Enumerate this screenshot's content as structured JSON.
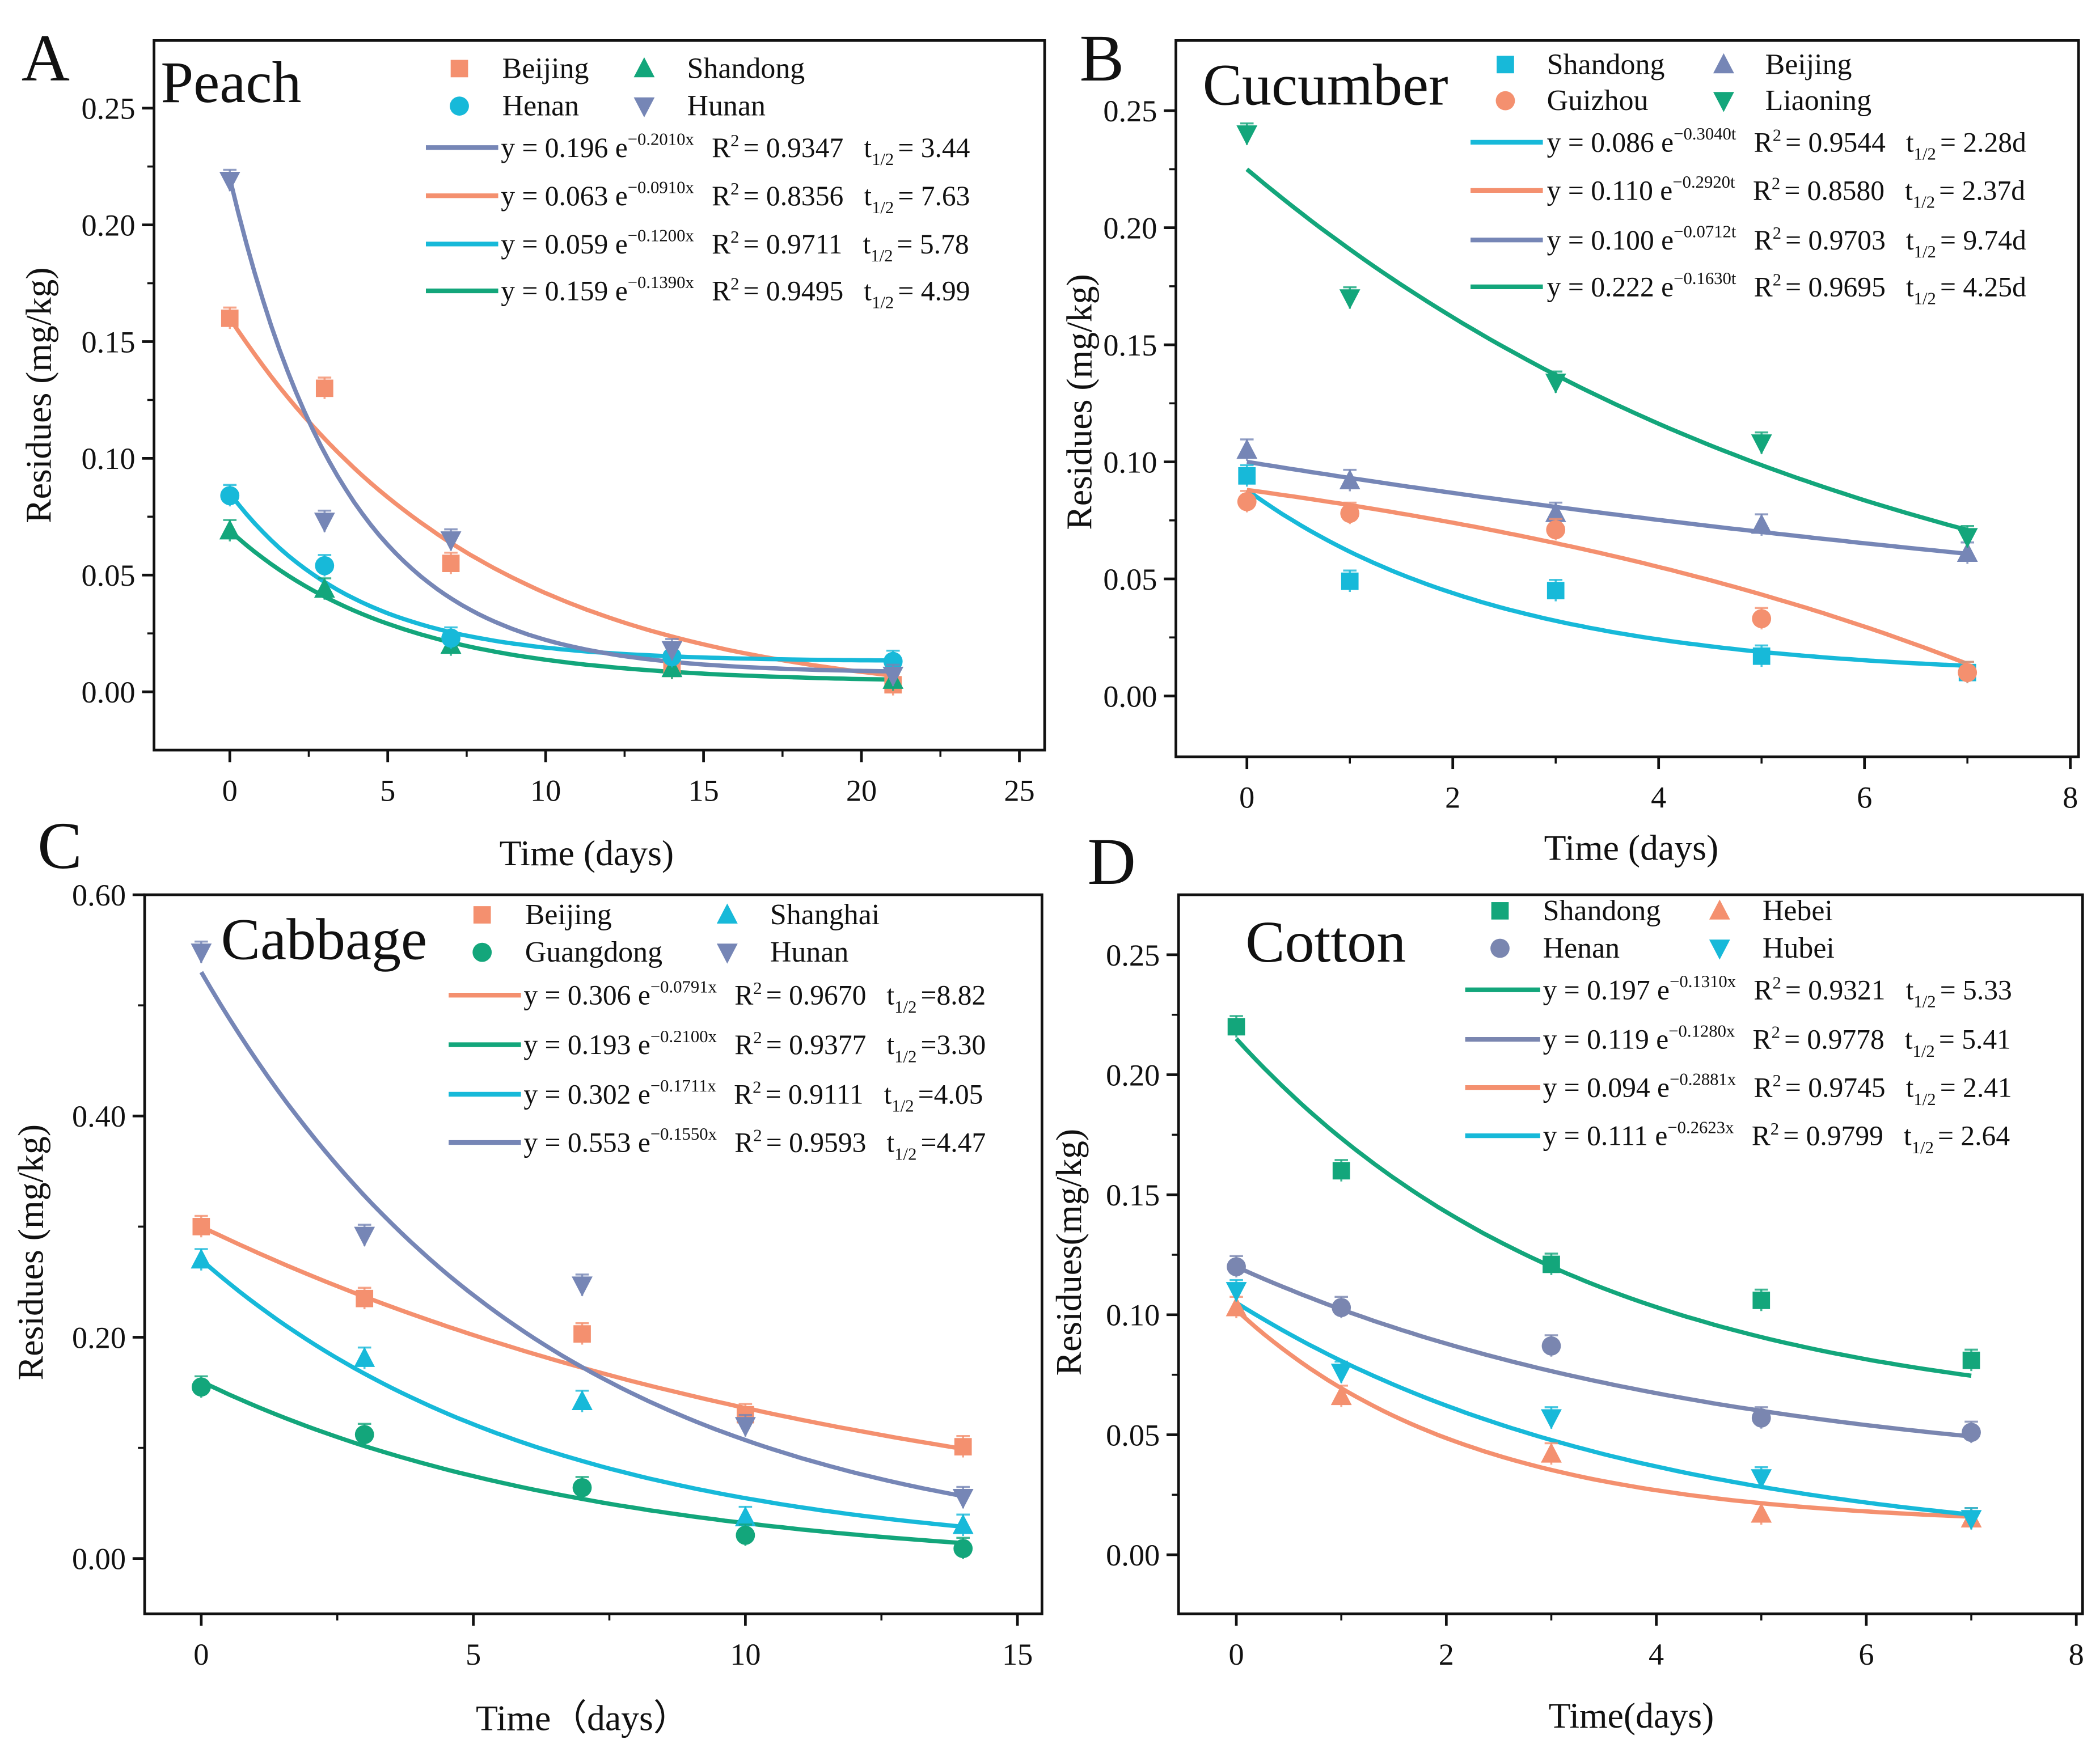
{
  "chart_data": [
    {
      "type": "scatter",
      "panel_letter": "A",
      "title": "Peach",
      "xlabel": "Time (days)",
      "ylabel": "Residues (mg/kg)",
      "xlim": [
        -2.4,
        25.8
      ],
      "ylim": [
        -0.025,
        0.279
      ],
      "xticks": [
        "0",
        "5",
        "10",
        "15",
        "20",
        "25"
      ],
      "yticks": [
        "0.00",
        "0.05",
        "0.10",
        "0.15",
        "0.20",
        "0.25"
      ],
      "x": [
        0,
        3,
        7,
        14,
        21
      ],
      "series": [
        {
          "name": "Beijing",
          "marker": "square",
          "color": "#f4906f",
          "values": [
            0.16,
            0.13,
            0.055,
            0.01,
            0.003
          ],
          "curve": {
            "a": 0.165,
            "k": 0.125,
            "c": -0.005
          }
        },
        {
          "name": "Shandong",
          "marker": "triangle-up",
          "color": "#13a67b",
          "values": [
            0.069,
            0.044,
            0.02,
            0.01,
            0.005
          ],
          "curve": {
            "a": 0.065,
            "k": 0.19,
            "c": 0.004
          }
        },
        {
          "name": "Henan",
          "marker": "circle",
          "color": "#17b9d9",
          "values": [
            0.084,
            0.054,
            0.023,
            0.015,
            0.013
          ],
          "curve": {
            "a": 0.072,
            "k": 0.25,
            "c": 0.013
          }
        },
        {
          "name": "Hunan",
          "marker": "triangle-down",
          "color": "#7686b6",
          "values": [
            0.219,
            0.073,
            0.065,
            0.018,
            0.007
          ],
          "curve": {
            "a": 0.212,
            "k": 0.27,
            "c": 0.008
          }
        }
      ],
      "fits": [
        {
          "color": "#7686b6",
          "equation": "y = 0.196 e",
          "exponent": "−0.2010x",
          "r2": "= 0.9347",
          "half_life": "= 3.44"
        },
        {
          "color": "#f4906f",
          "equation": "y = 0.063 e",
          "exponent": "−0.0910x",
          "r2": "= 0.8356",
          "half_life": "= 7.63"
        },
        {
          "color": "#17b9d9",
          "equation": "y = 0.059 e",
          "exponent": "−0.1200x",
          "r2": "= 0.9711",
          "half_life": "= 5.78"
        },
        {
          "color": "#13a67b",
          "equation": "y = 0.159 e",
          "exponent": "−0.1390x",
          "r2": "= 0.9495",
          "half_life": "= 4.99"
        }
      ]
    },
    {
      "type": "scatter",
      "panel_letter": "B",
      "title": "Cucumber",
      "xlabel": "Time (days)",
      "ylabel": "Residues (mg/kg)",
      "xlim": [
        -0.69,
        8.08
      ],
      "ylim": [
        -0.026,
        0.28
      ],
      "xticks": [
        "0",
        "2",
        "4",
        "6",
        "8"
      ],
      "yticks": [
        "0.00",
        "0.05",
        "0.10",
        "0.15",
        "0.20",
        "0.25"
      ],
      "x": [
        0,
        1,
        3,
        5,
        7
      ],
      "series": [
        {
          "name": "Shandong",
          "marker": "square",
          "color": "#17b9d9",
          "values": [
            0.094,
            0.049,
            0.045,
            0.017,
            0.01
          ],
          "curve": {
            "a": 0.08,
            "k": 0.4,
            "c": 0.008
          }
        },
        {
          "name": "Beijing",
          "marker": "triangle-up",
          "color": "#7686b6",
          "values": [
            0.105,
            0.092,
            0.078,
            0.073,
            0.061
          ],
          "curve": {
            "a": 0.1,
            "k": 0.0712,
            "c": 0
          }
        },
        {
          "name": "Guizhou",
          "marker": "circle",
          "color": "#f4906f",
          "values": [
            0.083,
            0.078,
            0.071,
            0.033,
            0.01
          ],
          "curve": {
            "a": -0.04,
            "k": -0.15,
            "c": 0.128
          }
        },
        {
          "name": "Liaoning",
          "marker": "triangle-down",
          "color": "#13a67b",
          "values": [
            0.24,
            0.17,
            0.134,
            0.108,
            0.068
          ],
          "curve": {
            "a": 0.225,
            "k": 0.165,
            "c": 0
          }
        }
      ],
      "fits": [
        {
          "color": "#17b9d9",
          "equation": "y = 0.086 e",
          "exponent": "−0.3040t",
          "r2": "= 0.9544",
          "half_life": "= 2.28d"
        },
        {
          "color": "#f4906f",
          "equation": "y = 0.110 e",
          "exponent": "−0.2920t",
          "r2": "= 0.8580",
          "half_life": "= 2.37d"
        },
        {
          "color": "#7686b6",
          "equation": "y = 0.100 e",
          "exponent": "−0.0712t",
          "r2": "= 0.9703",
          "half_life": "= 9.74d"
        },
        {
          "color": "#13a67b",
          "equation": "y = 0.222 e",
          "exponent": "−0.1630t",
          "r2": "= 0.9695",
          "half_life": "= 4.25d"
        }
      ]
    },
    {
      "type": "scatter",
      "panel_letter": "C",
      "title": "Cabbage",
      "xlabel": "Time（days）",
      "ylabel": "Residues (mg/kg)",
      "xlim": [
        -1.04,
        15.45
      ],
      "ylim": [
        -0.05,
        0.6
      ],
      "xticks": [
        "0",
        "5",
        "10",
        "15"
      ],
      "yticks": [
        "0.00",
        "0.20",
        "0.40",
        "0.60"
      ],
      "x": [
        0,
        3,
        7,
        10,
        14
      ],
      "series": [
        {
          "name": "Beijing",
          "marker": "square",
          "color": "#f4906f",
          "values": [
            0.3,
            0.235,
            0.203,
            0.13,
            0.101
          ],
          "curve": {
            "a": 0.3,
            "k": 0.0791,
            "c": 0
          }
        },
        {
          "name": "Shanghai",
          "marker": "triangle-up",
          "color": "#17b9d9",
          "values": [
            0.27,
            0.181,
            0.142,
            0.037,
            0.03
          ],
          "curve": {
            "a": 0.27,
            "k": 0.16,
            "c": 0
          }
        },
        {
          "name": "Guangdong",
          "marker": "circle",
          "color": "#13a67b",
          "values": [
            0.155,
            0.112,
            0.064,
            0.021,
            0.009
          ],
          "curve": {
            "a": 0.17,
            "k": 0.14,
            "c": -0.01
          }
        },
        {
          "name": "Hunan",
          "marker": "triangle-down",
          "color": "#7686b6",
          "values": [
            0.548,
            0.292,
            0.247,
            0.12,
            0.055
          ],
          "curve": {
            "a": 0.53,
            "k": 0.16,
            "c": 0
          }
        }
      ],
      "fits": [
        {
          "color": "#f4906f",
          "equation": "y = 0.306 e",
          "exponent": "−0.0791x",
          "r2": "= 0.9670",
          "half_life": "=8.82"
        },
        {
          "color": "#13a67b",
          "equation": "y = 0.193 e",
          "exponent": "−0.2100x",
          "r2": "= 0.9377",
          "half_life": "=3.30"
        },
        {
          "color": "#17b9d9",
          "equation": "y = 0.302 e",
          "exponent": "−0.1711x",
          "r2": "= 0.9111",
          "half_life": "=4.05"
        },
        {
          "color": "#7686b6",
          "equation": "y = 0.553 e",
          "exponent": "−0.1550x",
          "r2": "= 0.9593",
          "half_life": "=4.47"
        }
      ]
    },
    {
      "type": "scatter",
      "panel_letter": "D",
      "title": "Cotton",
      "xlabel": "Time(days)",
      "ylabel": "Residues(mg/kg)",
      "xlim": [
        -0.55,
        8.06
      ],
      "ylim": [
        -0.0246,
        0.275
      ],
      "xticks": [
        "0",
        "2",
        "4",
        "6",
        "8"
      ],
      "yticks": [
        "0.00",
        "0.05",
        "0.10",
        "0.15",
        "0.20",
        "0.25"
      ],
      "x": [
        0,
        1,
        3,
        5,
        7
      ],
      "series": [
        {
          "name": "Shandong",
          "marker": "square",
          "color": "#13a67b",
          "values": [
            0.22,
            0.16,
            0.121,
            0.106,
            0.081
          ],
          "curve": {
            "a": 0.16,
            "k": 0.3,
            "c": 0.055
          }
        },
        {
          "name": "Hebei",
          "marker": "triangle-up",
          "color": "#f4906f",
          "values": [
            0.103,
            0.066,
            0.042,
            0.017,
            0.015
          ],
          "curve": {
            "a": 0.09,
            "k": 0.45,
            "c": 0.012
          }
        },
        {
          "name": "Henan",
          "marker": "circle",
          "color": "#7a86b0",
          "values": [
            0.12,
            0.103,
            0.087,
            0.057,
            0.051
          ],
          "curve": {
            "a": 0.09,
            "k": 0.22,
            "c": 0.03
          }
        },
        {
          "name": "Hubei",
          "marker": "triangle-down",
          "color": "#17b9d9",
          "values": [
            0.11,
            0.076,
            0.057,
            0.032,
            0.015
          ],
          "curve": {
            "a": 0.105,
            "k": 0.2623,
            "c": 0
          }
        }
      ],
      "fits": [
        {
          "color": "#13a67b",
          "equation": "y = 0.197 e",
          "exponent": "−0.1310x",
          "r2": "= 0.9321",
          "half_life": "= 5.33"
        },
        {
          "color": "#7a86b0",
          "equation": "y = 0.119 e",
          "exponent": "−0.1280x",
          "r2": "= 0.9778",
          "half_life": "= 5.41"
        },
        {
          "color": "#f4906f",
          "equation": "y = 0.094 e",
          "exponent": "−0.2881x",
          "r2": "= 0.9745",
          "half_life": "= 2.41"
        },
        {
          "color": "#17b9d9",
          "equation": "y = 0.111 e",
          "exponent": "−0.2623x",
          "r2": "= 0.9799",
          "half_life": "= 2.64"
        }
      ]
    }
  ]
}
